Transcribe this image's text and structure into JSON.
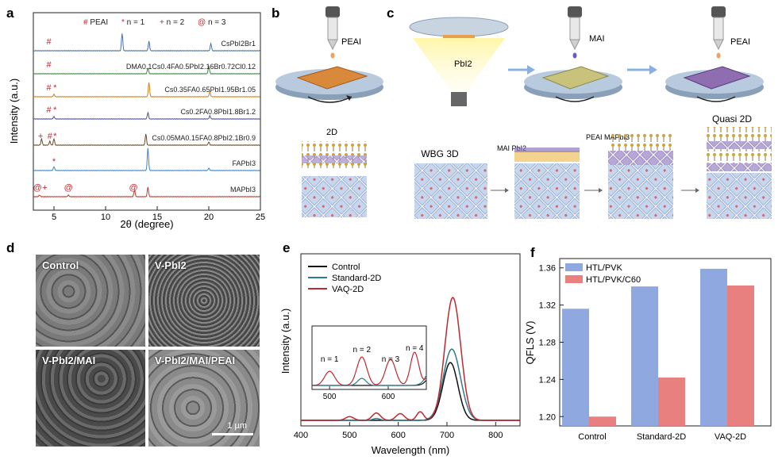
{
  "panels": {
    "a": "a",
    "b": "b",
    "c": "c",
    "d": "d",
    "e": "e",
    "f": "f"
  },
  "colors": {
    "xrd": [
      "#4a6fa8",
      "#3a8a3a",
      "#d4801c",
      "#4a4fa8",
      "#6b4a2a",
      "#3b86c8",
      "#c0392b"
    ],
    "pl": {
      "control": "#111111",
      "standard": "#2e7b8c",
      "vaq": "#c0282f"
    },
    "qfls": {
      "pvk": "#8fa8e0",
      "c60": "#e88080"
    },
    "sem_bg": "#6a6a6a"
  },
  "chart_data": [
    {
      "id": "a",
      "type": "line",
      "xlabel": "2θ (degree)",
      "ylabel": "Intensity (a.u.)",
      "xlim": [
        3,
        25
      ],
      "xticks": [
        "5",
        "10",
        "15",
        "20",
        "25"
      ],
      "legend": [
        {
          "symbol": "#",
          "label": "PEAI"
        },
        {
          "symbol": "*",
          "label": "n = 1"
        },
        {
          "symbol": "+",
          "label": "n = 2"
        },
        {
          "symbol": "@",
          "label": "n = 3"
        }
      ],
      "series": [
        {
          "label": "CsPbI2Br1",
          "peaks": [
            [
              11.6,
              22
            ],
            [
              14.2,
              12
            ],
            [
              20.2,
              9
            ]
          ],
          "marks": [
            {
              "x": 4.5,
              "t": "#"
            }
          ]
        },
        {
          "label": "DMA0.1Cs0.4FA0.5PbI2.16Br0.72Cl0.12",
          "peaks": [
            [
              14.1,
              7
            ],
            [
              20.0,
              10
            ]
          ],
          "marks": [
            {
              "x": 4.5,
              "t": "#"
            }
          ]
        },
        {
          "label": "Cs0.35FA0.65PbI1.95Br1.05",
          "peaks": [
            [
              5.0,
              3
            ],
            [
              14.2,
              18
            ],
            [
              20.1,
              6
            ]
          ],
          "marks": [
            {
              "x": 4.5,
              "t": "#"
            },
            {
              "x": 5.1,
              "t": "*"
            }
          ]
        },
        {
          "label": "Cs0.2FA0.8PbI1.8Br1.2",
          "peaks": [
            [
              5.0,
              3
            ],
            [
              14.1,
              8
            ],
            [
              20.1,
              4
            ]
          ],
          "marks": [
            {
              "x": 4.5,
              "t": "#"
            },
            {
              "x": 5.1,
              "t": "*"
            }
          ]
        },
        {
          "label": "Cs0.05MA0.15FA0.8PbI2.1Br0.9",
          "peaks": [
            [
              3.8,
              8
            ],
            [
              4.6,
              5
            ],
            [
              5.0,
              8
            ],
            [
              13.9,
              14
            ],
            [
              20.0,
              4
            ]
          ],
          "marks": [
            {
              "x": 3.7,
              "t": "+"
            },
            {
              "x": 4.6,
              "t": "#"
            },
            {
              "x": 5.1,
              "t": "*"
            }
          ]
        },
        {
          "label": "FAPbI3",
          "peaks": [
            [
              5.0,
              5
            ],
            [
              14.1,
              28
            ],
            [
              20.0,
              3
            ]
          ],
          "marks": [
            {
              "x": 5.0,
              "t": "*"
            }
          ]
        },
        {
          "label": "MAPbI3",
          "peaks": [
            [
              3.6,
              2
            ],
            [
              6.4,
              2
            ],
            [
              12.8,
              8
            ],
            [
              14.1,
              12
            ]
          ],
          "marks": [
            {
              "x": 3.4,
              "t": "@"
            },
            {
              "x": 4.1,
              "t": "+"
            },
            {
              "x": 6.4,
              "t": "@"
            },
            {
              "x": 12.7,
              "t": "@"
            }
          ]
        }
      ]
    },
    {
      "id": "e",
      "type": "line",
      "xlabel": "Wavelength (nm)",
      "ylabel": "Intensity (a.u.)",
      "xlim": [
        400,
        850
      ],
      "xticks": [
        "400",
        "500",
        "600",
        "700",
        "800"
      ],
      "legend": [
        "Control",
        "Standard-2D",
        "VAQ-2D"
      ],
      "series": [
        {
          "name": "Control",
          "peaks": [
            [
              707,
              0.47,
              22
            ]
          ]
        },
        {
          "name": "Standard-2D",
          "peaks": [
            [
              710,
              0.58,
              25
            ],
            [
              555,
              0.015,
              10
            ]
          ]
        },
        {
          "name": "VAQ-2D",
          "peaks": [
            [
              712,
              1.0,
              23
            ],
            [
              500,
              0.03,
              12
            ],
            [
              555,
              0.06,
              12
            ],
            [
              604,
              0.055,
              12
            ],
            [
              645,
              0.07,
              10
            ]
          ]
        }
      ],
      "inset": {
        "xticks": [
          "500",
          "600"
        ],
        "labels": [
          "n = 1",
          "n = 2",
          "n = 3",
          "n = 4"
        ]
      }
    },
    {
      "id": "f",
      "type": "bar",
      "ylabel": "QFLS (V)",
      "ylim": [
        1.19,
        1.37
      ],
      "yticks": [
        "1.20",
        "1.24",
        "1.28",
        "1.32",
        "1.36"
      ],
      "categories": [
        "Control",
        "Standard-2D",
        "VAQ-2D"
      ],
      "series": [
        {
          "name": "HTL/PVK",
          "values": [
            1.316,
            1.34,
            1.359
          ]
        },
        {
          "name": "HTL/PVK/C60",
          "values": [
            1.2,
            1.242,
            1.341
          ]
        }
      ]
    }
  ],
  "schematic": {
    "b": {
      "peai": "PEAI",
      "label_2d": "2D"
    },
    "c": {
      "pbi2": "PbI2",
      "mai": "MAI",
      "peai": "PEAI",
      "wbg": "WBG 3D",
      "mai_pbi2": "MAI PbI2",
      "peai_mapbi3": "PEAI MAPbI3",
      "quasi": "Quasi 2D"
    }
  },
  "sem": {
    "tiles": [
      "Control",
      "V-PbI2",
      "V-PbI2/MAI",
      "V-PbI2/MAI/PEAI"
    ],
    "scalebar": "1 µm"
  }
}
